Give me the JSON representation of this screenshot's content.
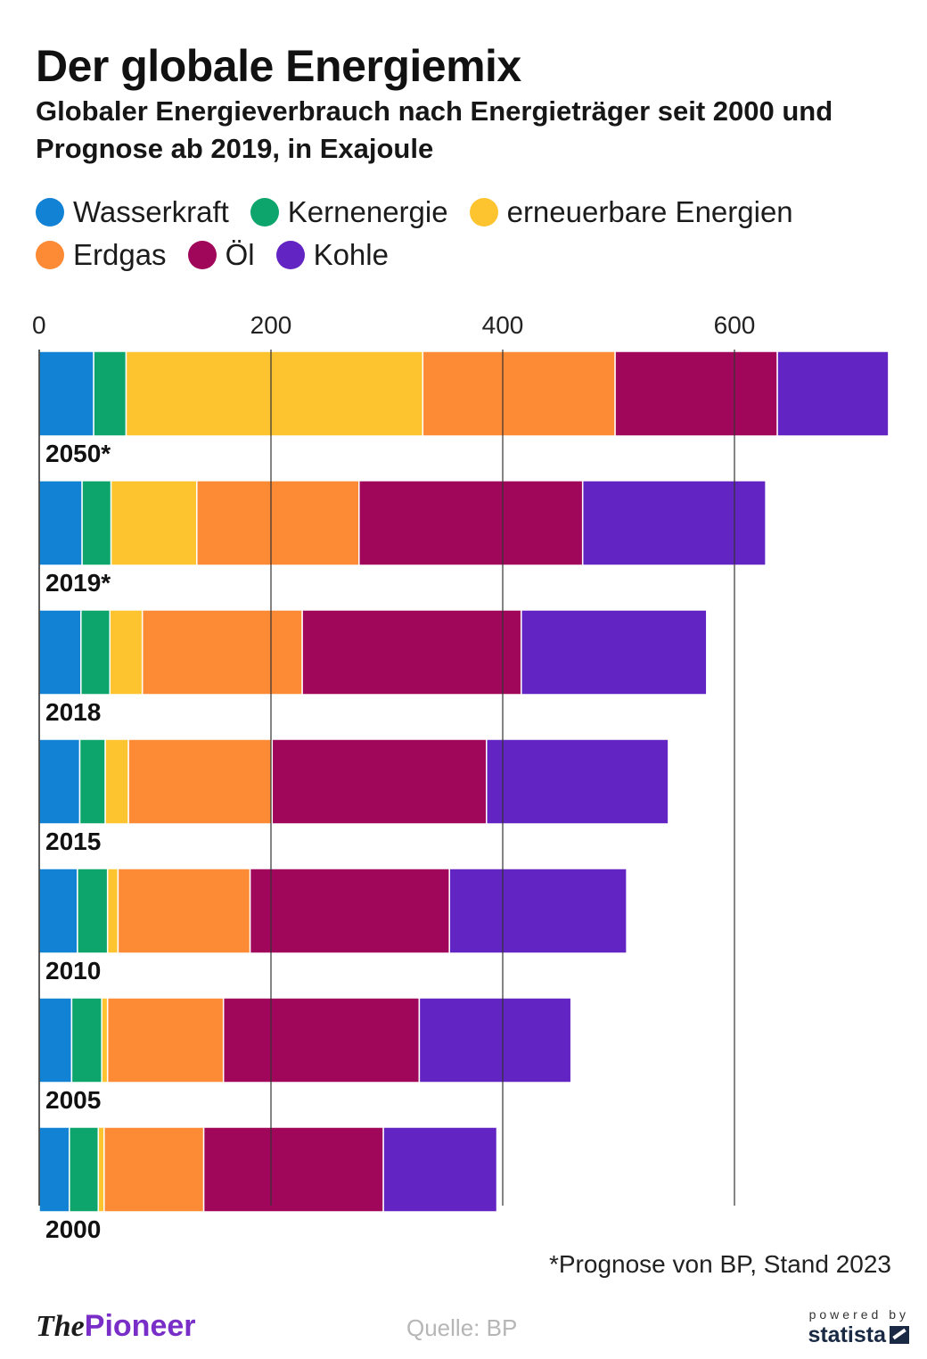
{
  "header": {
    "title": "Der globale Energiemix",
    "subtitle": "Globaler Energieverbrauch nach Energieträger seit 2000 und Prognose ab 2019, in Exajoule"
  },
  "legend": [
    {
      "label": "Wasserkraft",
      "color": "#1282d4"
    },
    {
      "label": "Kernenergie",
      "color": "#0da56c"
    },
    {
      "label": "erneuerbare Energien",
      "color": "#fdc430"
    },
    {
      "label": "Erdgas",
      "color": "#fd8a35"
    },
    {
      "label": "Öl",
      "color": "#a0075a"
    },
    {
      "label": "Kohle",
      "color": "#6324c4"
    }
  ],
  "chart_data": {
    "type": "bar",
    "orientation": "horizontal",
    "stacked": true,
    "unit": "Exajoule",
    "categories": [
      "2050*",
      "2019*",
      "2018",
      "2015",
      "2010",
      "2005",
      "2000"
    ],
    "series": [
      {
        "name": "Wasserkraft",
        "color": "#1282d4",
        "values": [
          47,
          37,
          36,
          35,
          33,
          28,
          26
        ]
      },
      {
        "name": "Kernenergie",
        "color": "#0da56c",
        "values": [
          28,
          25,
          25,
          22,
          26,
          26,
          25
        ]
      },
      {
        "name": "erneuerbare Energien",
        "color": "#fdc430",
        "values": [
          256,
          74,
          28,
          20,
          9,
          5,
          5
        ]
      },
      {
        "name": "Erdgas",
        "color": "#fd8a35",
        "values": [
          166,
          140,
          138,
          124,
          114,
          100,
          86
        ]
      },
      {
        "name": "Öl",
        "color": "#a0075a",
        "values": [
          140,
          193,
          189,
          185,
          172,
          169,
          155
        ]
      },
      {
        "name": "Kohle",
        "color": "#6324c4",
        "values": [
          96,
          158,
          160,
          157,
          153,
          131,
          98
        ]
      }
    ],
    "xlim": [
      0,
      740
    ],
    "ticks": [
      0,
      200,
      400,
      600
    ],
    "grid": true,
    "legend_position": "top"
  },
  "footer": {
    "footnote": "*Prognose von BP, Stand 2023",
    "source": "Quelle: BP",
    "brand_the": "The",
    "brand_pioneer": "Pioneer",
    "powered_by": "powered by",
    "statista": "statista"
  }
}
